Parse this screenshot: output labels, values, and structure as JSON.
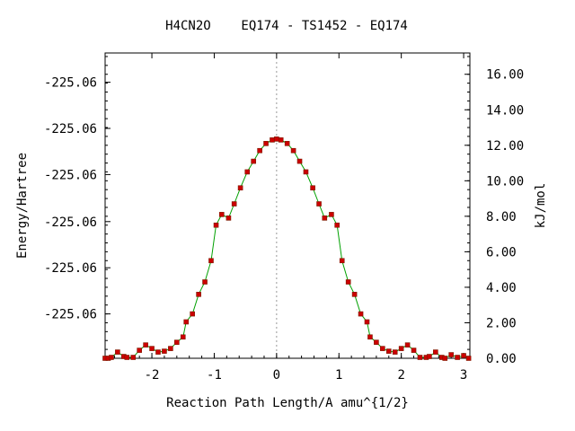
{
  "chart_data": {
    "type": "line",
    "title": "H4CN2O    EQ174 - TS1452 - EQ174",
    "xlabel": "Reaction Path Length/A amu^{1/2}",
    "ylabel_left": "Energy/Hartree",
    "ylabel_right": "kJ/mol",
    "xlim": [
      -2.75,
      3.1
    ],
    "ylim_kj": [
      0,
      17.2
    ],
    "x_ticks": [
      {
        "value": -2,
        "label": "-2"
      },
      {
        "value": -1,
        "label": "-1"
      },
      {
        "value": 0,
        "label": "0"
      },
      {
        "value": 1,
        "label": "1"
      },
      {
        "value": 2,
        "label": "2"
      },
      {
        "value": 3,
        "label": "3"
      }
    ],
    "right_ticks": [
      {
        "value": 0,
        "label": "0.00"
      },
      {
        "value": 2,
        "label": "2.00"
      },
      {
        "value": 4,
        "label": "4.00"
      },
      {
        "value": 6,
        "label": "6.00"
      },
      {
        "value": 8,
        "label": "8.00"
      },
      {
        "value": 10,
        "label": "10.00"
      },
      {
        "value": 12,
        "label": "12.00"
      },
      {
        "value": 14,
        "label": "14.00"
      },
      {
        "value": 16,
        "label": "16.00"
      }
    ],
    "left_ticks": [
      {
        "value": 2.5,
        "label": "-225.06"
      },
      {
        "value": 5.1,
        "label": "-225.06"
      },
      {
        "value": 7.7,
        "label": "-225.06"
      },
      {
        "value": 10.35,
        "label": "-225.06"
      },
      {
        "value": 12.95,
        "label": "-225.06"
      },
      {
        "value": 15.55,
        "label": "-225.06"
      }
    ],
    "ts_marker_x": 0,
    "line_color": "#00a000",
    "point_color": "#cc0000",
    "series": [
      {
        "points": [
          [
            -2.75,
            0.0
          ],
          [
            -2.7,
            0.0
          ],
          [
            -2.65,
            0.05
          ],
          [
            -2.55,
            0.35
          ],
          [
            -2.45,
            0.1
          ],
          [
            -2.4,
            0.05
          ],
          [
            -2.3,
            0.05
          ],
          [
            -2.2,
            0.45
          ],
          [
            -2.1,
            0.75
          ],
          [
            -2.0,
            0.55
          ],
          [
            -1.9,
            0.35
          ],
          [
            -1.8,
            0.4
          ],
          [
            -1.7,
            0.55
          ],
          [
            -1.6,
            0.9
          ],
          [
            -1.5,
            1.2
          ],
          [
            -1.45,
            2.05
          ],
          [
            -1.35,
            2.5
          ],
          [
            -1.25,
            3.6
          ],
          [
            -1.15,
            4.3
          ],
          [
            -1.05,
            5.5
          ],
          [
            -0.97,
            7.5
          ],
          [
            -0.88,
            8.1
          ],
          [
            -0.77,
            7.9
          ],
          [
            -0.68,
            8.7
          ],
          [
            -0.58,
            9.6
          ],
          [
            -0.47,
            10.5
          ],
          [
            -0.37,
            11.1
          ],
          [
            -0.27,
            11.7
          ],
          [
            -0.17,
            12.1
          ],
          [
            -0.07,
            12.3
          ],
          [
            0.0,
            12.35
          ],
          [
            0.07,
            12.3
          ],
          [
            0.17,
            12.1
          ],
          [
            0.27,
            11.7
          ],
          [
            0.37,
            11.1
          ],
          [
            0.47,
            10.5
          ],
          [
            0.58,
            9.6
          ],
          [
            0.68,
            8.7
          ],
          [
            0.77,
            7.9
          ],
          [
            0.88,
            8.1
          ],
          [
            0.97,
            7.5
          ],
          [
            1.05,
            5.5
          ],
          [
            1.15,
            4.3
          ],
          [
            1.25,
            3.6
          ],
          [
            1.35,
            2.5
          ],
          [
            1.45,
            2.05
          ],
          [
            1.5,
            1.2
          ],
          [
            1.6,
            0.9
          ],
          [
            1.7,
            0.55
          ],
          [
            1.8,
            0.4
          ],
          [
            1.9,
            0.35
          ],
          [
            2.0,
            0.55
          ],
          [
            2.1,
            0.75
          ],
          [
            2.2,
            0.45
          ],
          [
            2.3,
            0.05
          ],
          [
            2.4,
            0.05
          ],
          [
            2.45,
            0.1
          ],
          [
            2.55,
            0.35
          ],
          [
            2.65,
            0.05
          ],
          [
            2.7,
            0.0
          ],
          [
            2.8,
            0.2
          ],
          [
            2.9,
            0.05
          ],
          [
            3.0,
            0.15
          ],
          [
            3.08,
            0.0
          ]
        ]
      }
    ]
  }
}
